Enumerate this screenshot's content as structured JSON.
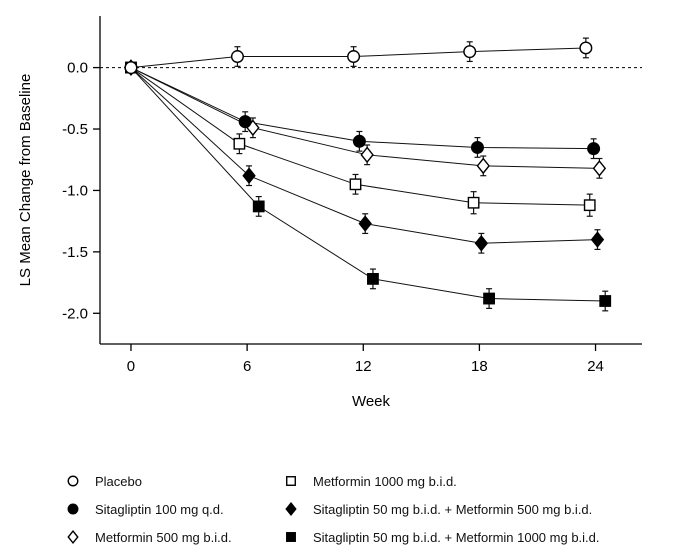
{
  "chart_data": {
    "type": "line",
    "title": "",
    "xlabel": "Week",
    "ylabel": "LS Mean Change from Baseline",
    "xlim": [
      -1.6,
      26.4
    ],
    "ylim": [
      -2.25,
      0.42
    ],
    "grid": false,
    "zero_reference_line": true,
    "legend_position": "bottom",
    "xticks": [
      {
        "value": 0,
        "label": "0"
      },
      {
        "value": 6,
        "label": "6"
      },
      {
        "value": 12,
        "label": "12"
      },
      {
        "value": 18,
        "label": "18"
      },
      {
        "value": 24,
        "label": "24"
      }
    ],
    "yticks": [
      {
        "value": 0.0,
        "label": "0.0"
      },
      {
        "value": -0.5,
        "label": "-0.5"
      },
      {
        "value": -1.0,
        "label": "-1.0"
      },
      {
        "value": -1.5,
        "label": "-1.5"
      },
      {
        "value": -2.0,
        "label": "-2.0"
      }
    ],
    "series": [
      {
        "name": "Placebo",
        "marker": "circle",
        "filled": false,
        "x": [
          0,
          5.5,
          11.5,
          17.5,
          23.5
        ],
        "y": [
          0.0,
          0.09,
          0.09,
          0.13,
          0.16
        ],
        "err": [
          0,
          0.08,
          0.08,
          0.08,
          0.08
        ]
      },
      {
        "name": "Sitagliptin 100 mg q.d.",
        "marker": "circle",
        "filled": true,
        "x": [
          0,
          5.9,
          11.8,
          17.9,
          23.9
        ],
        "y": [
          0.0,
          -0.44,
          -0.6,
          -0.65,
          -0.66
        ],
        "err": [
          0,
          0.08,
          0.08,
          0.08,
          0.08
        ]
      },
      {
        "name": "Metformin 500 mg b.i.d.",
        "marker": "diamond",
        "filled": false,
        "x": [
          0,
          6.3,
          12.2,
          18.2,
          24.2
        ],
        "y": [
          0.0,
          -0.49,
          -0.71,
          -0.8,
          -0.82
        ],
        "err": [
          0,
          0.08,
          0.08,
          0.08,
          0.08
        ]
      },
      {
        "name": "Metformin 1000 mg b.i.d.",
        "marker": "square",
        "filled": false,
        "x": [
          0,
          5.6,
          11.6,
          17.7,
          23.7
        ],
        "y": [
          0.0,
          -0.62,
          -0.95,
          -1.1,
          -1.12
        ],
        "err": [
          0,
          0.08,
          0.08,
          0.09,
          0.09
        ]
      },
      {
        "name": "Sitagliptin 50 mg b.i.d. + Metformin 500 mg b.i.d.",
        "marker": "diamond",
        "filled": true,
        "x": [
          0,
          6.1,
          12.1,
          18.1,
          24.1
        ],
        "y": [
          0.0,
          -0.88,
          -1.27,
          -1.43,
          -1.4
        ],
        "err": [
          0,
          0.08,
          0.08,
          0.08,
          0.08
        ]
      },
      {
        "name": "Sitagliptin 50 mg b.i.d. + Metformin 1000 mg b.i.d.",
        "marker": "square",
        "filled": true,
        "x": [
          0,
          6.6,
          12.5,
          18.5,
          24.5
        ],
        "y": [
          0.0,
          -1.13,
          -1.72,
          -1.88,
          -1.9
        ],
        "err": [
          0,
          0.08,
          0.08,
          0.08,
          0.08
        ]
      }
    ]
  }
}
